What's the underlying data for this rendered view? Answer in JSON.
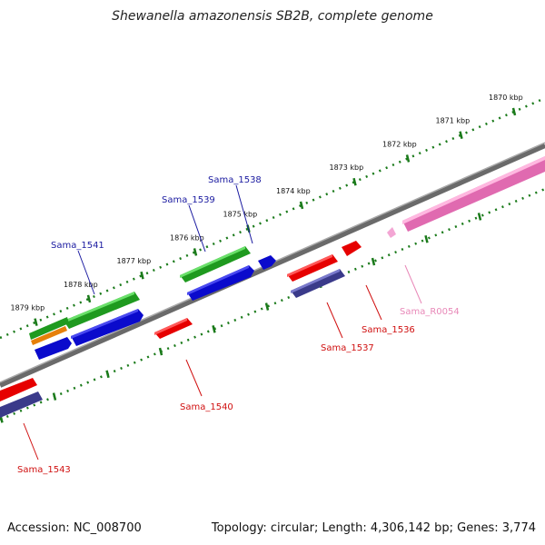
{
  "title": "Shewanella amazonensis SB2B, complete genome",
  "footer": {
    "accession": "Accession: NC_008700",
    "summary": "Topology: circular; Length: 4,306,142 bp; Genes: 3,774"
  },
  "colors": {
    "backbone": "#808080",
    "ticks": "#1a7a1a",
    "plus_label": "#1a1aa0",
    "minus_label": "#d01010",
    "rna_label": "#e888b8"
  },
  "ticks": [
    {
      "label": "1870 kbp"
    },
    {
      "label": "1871 kbp"
    },
    {
      "label": "1872 kbp"
    },
    {
      "label": "1873 kbp"
    },
    {
      "label": "1874 kbp"
    },
    {
      "label": "1875 kbp"
    },
    {
      "label": "1876 kbp"
    },
    {
      "label": "1877 kbp"
    },
    {
      "label": "1878 kbp"
    },
    {
      "label": "1879 kbp"
    }
  ],
  "genes": [
    {
      "name": "Sama_1538",
      "strand": "+"
    },
    {
      "name": "Sama_1539",
      "strand": "+"
    },
    {
      "name": "Sama_1541",
      "strand": "+"
    },
    {
      "name": "Sama_R0054",
      "strand": "-"
    },
    {
      "name": "Sama_1536",
      "strand": "-"
    },
    {
      "name": "Sama_1537",
      "strand": "-"
    },
    {
      "name": "Sama_1540",
      "strand": "-"
    },
    {
      "name": "Sama_1543",
      "strand": "-"
    }
  ]
}
